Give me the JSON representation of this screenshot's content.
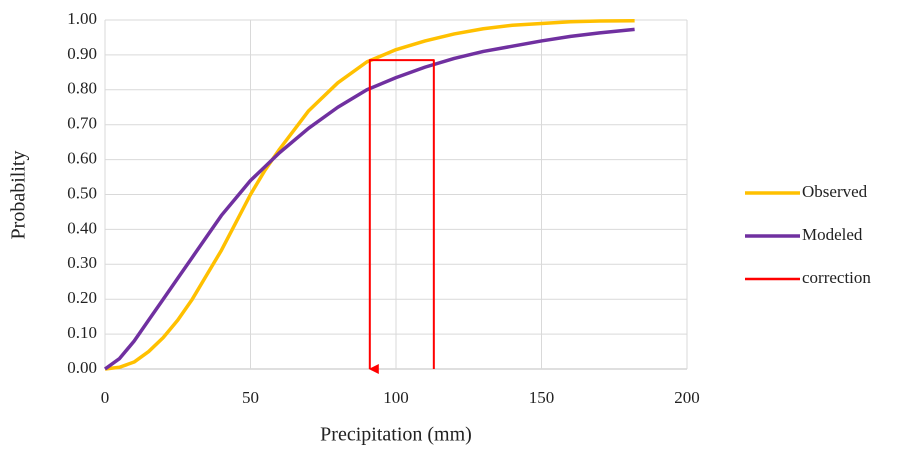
{
  "chart_data": {
    "type": "line",
    "x_label": "Precipitation (mm)",
    "y_label": "Probability",
    "xlim": [
      0,
      200
    ],
    "xticks": [
      0,
      50,
      100,
      150,
      200
    ],
    "ylim": [
      0,
      1
    ],
    "yticks": [
      {
        "value": 0,
        "label": "0.00"
      },
      {
        "value": 0.1,
        "label": "0.10"
      },
      {
        "value": 0.2,
        "label": "0.20"
      },
      {
        "value": 0.3,
        "label": "0.30"
      },
      {
        "value": 0.4,
        "label": "0.40"
      },
      {
        "value": 0.5,
        "label": "0.50"
      },
      {
        "value": 0.6,
        "label": "0.60"
      },
      {
        "value": 0.7,
        "label": "0.70"
      },
      {
        "value": 0.8,
        "label": "0.80"
      },
      {
        "value": 0.9,
        "label": "0.90"
      },
      {
        "value": 1,
        "label": "1.00"
      }
    ],
    "grid": true,
    "legend": "right",
    "series": [
      {
        "name": "Observed",
        "color": "#ffc000",
        "x": [
          0,
          5,
          10,
          15,
          20,
          25,
          30,
          35,
          40,
          45,
          50,
          55,
          60,
          70,
          80,
          90,
          100,
          110,
          120,
          130,
          140,
          150,
          160,
          170,
          182
        ],
        "values": [
          0,
          0.005,
          0.02,
          0.05,
          0.09,
          0.14,
          0.2,
          0.27,
          0.34,
          0.42,
          0.5,
          0.57,
          0.63,
          0.74,
          0.82,
          0.88,
          0.915,
          0.94,
          0.96,
          0.975,
          0.985,
          0.99,
          0.995,
          0.997,
          0.998
        ]
      },
      {
        "name": "Modeled",
        "color": "#7030a0",
        "x": [
          0,
          5,
          10,
          15,
          20,
          25,
          30,
          35,
          40,
          45,
          50,
          55,
          60,
          70,
          80,
          90,
          100,
          110,
          120,
          130,
          140,
          150,
          160,
          170,
          182
        ],
        "values": [
          0,
          0.03,
          0.08,
          0.14,
          0.2,
          0.26,
          0.32,
          0.38,
          0.44,
          0.49,
          0.54,
          0.58,
          0.62,
          0.69,
          0.75,
          0.8,
          0.835,
          0.865,
          0.89,
          0.91,
          0.925,
          0.94,
          0.953,
          0.963,
          0.973
        ]
      },
      {
        "name": "correction",
        "color": "#ff0000",
        "x": [
          113,
          113,
          91,
          91
        ],
        "values": [
          0,
          0.885,
          0.885,
          0
        ]
      }
    ]
  }
}
